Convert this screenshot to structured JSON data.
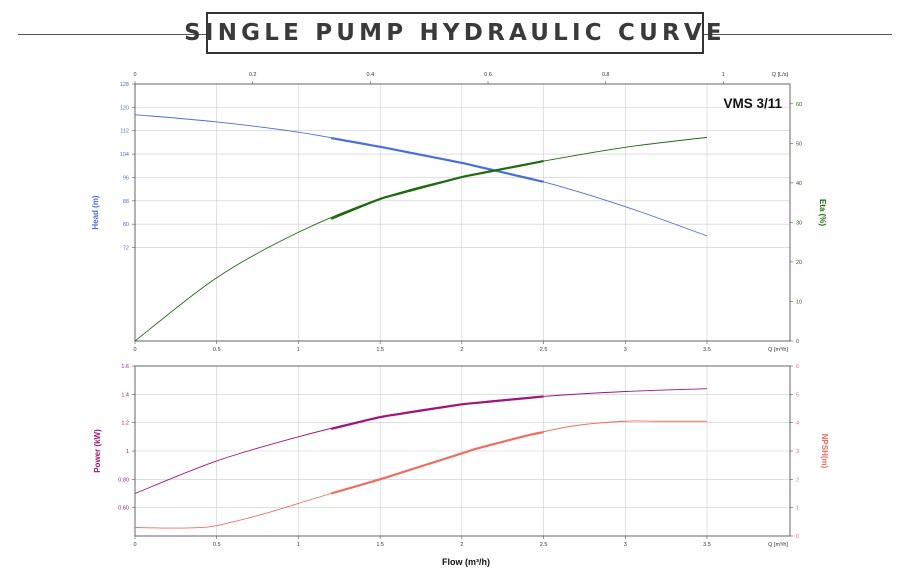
{
  "banner": {
    "title": "SINGLE PUMP HYDRAULIC CURVE"
  },
  "colors": {
    "head": "#4a6fdc",
    "eta": "#1e6b10",
    "power": "#a0157e",
    "npsh": "#ec6f60",
    "grid": "#cccccc",
    "frame": "#555555",
    "axis_text": "#333333"
  },
  "chart_data": [
    {
      "type": "line",
      "title": "VMS 3/11",
      "xlabel": "",
      "x_unit_label": "Q [m³/h]",
      "xlim": [
        0,
        3.5
      ],
      "x_ticks": [
        "0",
        "0.5",
        "1",
        "1.5",
        "2",
        "2.5",
        "3",
        "3.5"
      ],
      "top_axis": {
        "label": "Q [L/s]",
        "ticks": [
          "0",
          "0.2",
          "0.4",
          "0.6",
          "0.8",
          "1"
        ]
      },
      "left_axis": {
        "label": "Head (m)",
        "ylim": [
          40,
          128
        ],
        "ticks": [
          "72",
          "80",
          "88",
          "96",
          "104",
          "112",
          "120",
          "128"
        ]
      },
      "right_axis": {
        "label": "Eta (%)",
        "ylim": [
          0,
          65
        ],
        "ticks": [
          "0",
          "10",
          "20",
          "30",
          "40",
          "50",
          "60"
        ]
      },
      "grid": true,
      "series": [
        {
          "name": "Head (m)",
          "axis": "left",
          "x": [
            0,
            0.5,
            1,
            1.5,
            2,
            2.5,
            3,
            3.5
          ],
          "y": [
            117.5,
            115,
            111.5,
            106.5,
            101,
            94.5,
            86,
            76
          ],
          "bold_range": [
            1.2,
            2.5
          ]
        },
        {
          "name": "Eta (%)",
          "axis": "right",
          "x": [
            0,
            0.5,
            1,
            1.5,
            2,
            2.5,
            3,
            3.5
          ],
          "y": [
            0,
            16,
            27.5,
            36,
            41.5,
            45.5,
            49,
            51.5
          ],
          "bold_range": [
            1.2,
            2.5
          ]
        }
      ]
    },
    {
      "type": "line",
      "xlabel": "Flow (m³/h)",
      "x_unit_label": "Q [m³/h]",
      "xlim": [
        0,
        3.5
      ],
      "x_ticks": [
        "0",
        "0.5",
        "1",
        "1.5",
        "2",
        "2.5",
        "3",
        "3.5"
      ],
      "left_axis": {
        "label": "Power (kW)",
        "ylim": [
          0.4,
          1.6
        ],
        "ticks": [
          "0.60",
          "0.80",
          "1",
          "1.2",
          "1.4",
          "1.6"
        ]
      },
      "right_axis": {
        "label": "NPSH(m)",
        "ylim": [
          0,
          6
        ],
        "ticks": [
          "0",
          "1",
          "2",
          "3",
          "4",
          "5",
          "6"
        ]
      },
      "grid": true,
      "series": [
        {
          "name": "Power (kW)",
          "axis": "left",
          "x": [
            0,
            0.5,
            1,
            1.5,
            2,
            2.5,
            3,
            3.5
          ],
          "y": [
            0.7,
            0.93,
            1.1,
            1.24,
            1.33,
            1.385,
            1.42,
            1.44
          ],
          "bold_range": [
            1.2,
            2.5
          ]
        },
        {
          "name": "NPSH(m)",
          "axis": "right",
          "x": [
            0,
            0.25,
            0.45,
            0.6,
            0.8,
            1.0,
            1.2,
            1.5,
            1.8,
            2.1,
            2.4,
            2.7,
            3.0,
            3.2,
            3.5
          ],
          "y": [
            0.3,
            0.28,
            0.32,
            0.5,
            0.8,
            1.15,
            1.5,
            2.0,
            2.55,
            3.1,
            3.55,
            3.9,
            4.05,
            4.05,
            4.05
          ],
          "bold_range": [
            1.2,
            2.5
          ]
        }
      ]
    }
  ]
}
